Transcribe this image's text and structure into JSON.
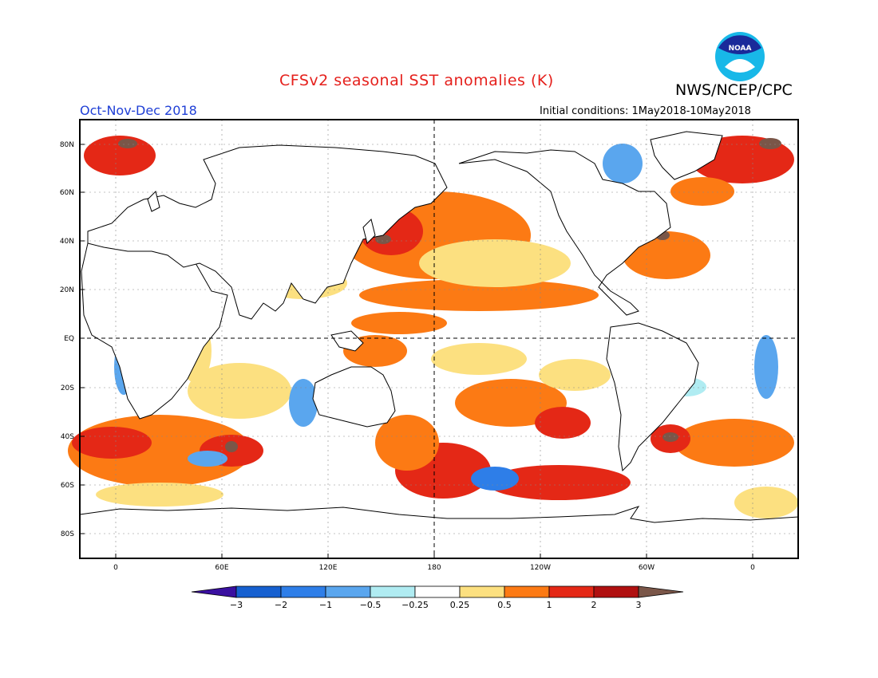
{
  "header": {
    "title": "CFSv2 seasonal SST anomalies (K)",
    "organization": "NWS/NCEP/CPC",
    "season": "Oct-Nov-Dec 2018",
    "initial_conditions": "Initial conditions: 1May2018-10May2018",
    "logo_text": "NOAA"
  },
  "map": {
    "lat_labels": [
      "80N",
      "60N",
      "40N",
      "20N",
      "EQ",
      "20S",
      "40S",
      "60S",
      "80S"
    ],
    "lon_labels": [
      "0",
      "60E",
      "120E",
      "180",
      "120W",
      "60W",
      "0"
    ],
    "dashed_reference_lines": [
      "EQ",
      "180"
    ]
  },
  "colorbar": {
    "tick_labels": [
      "−3",
      "−2",
      "−1",
      "−0.5",
      "−0.25",
      "0.25",
      "0.5",
      "1",
      "2",
      "3"
    ],
    "colors": [
      "#3a10a0",
      "#1660d0",
      "#2e7ee8",
      "#5aa6ee",
      "#b0ecf2",
      "#ffffff",
      "#fce080",
      "#fc7a14",
      "#e42816",
      "#b01010",
      "#7a5648"
    ]
  },
  "colors": {
    "title": "#e5201c",
    "season": "#1f3fd6",
    "land": "#ffffff",
    "coastline": "#000000"
  }
}
